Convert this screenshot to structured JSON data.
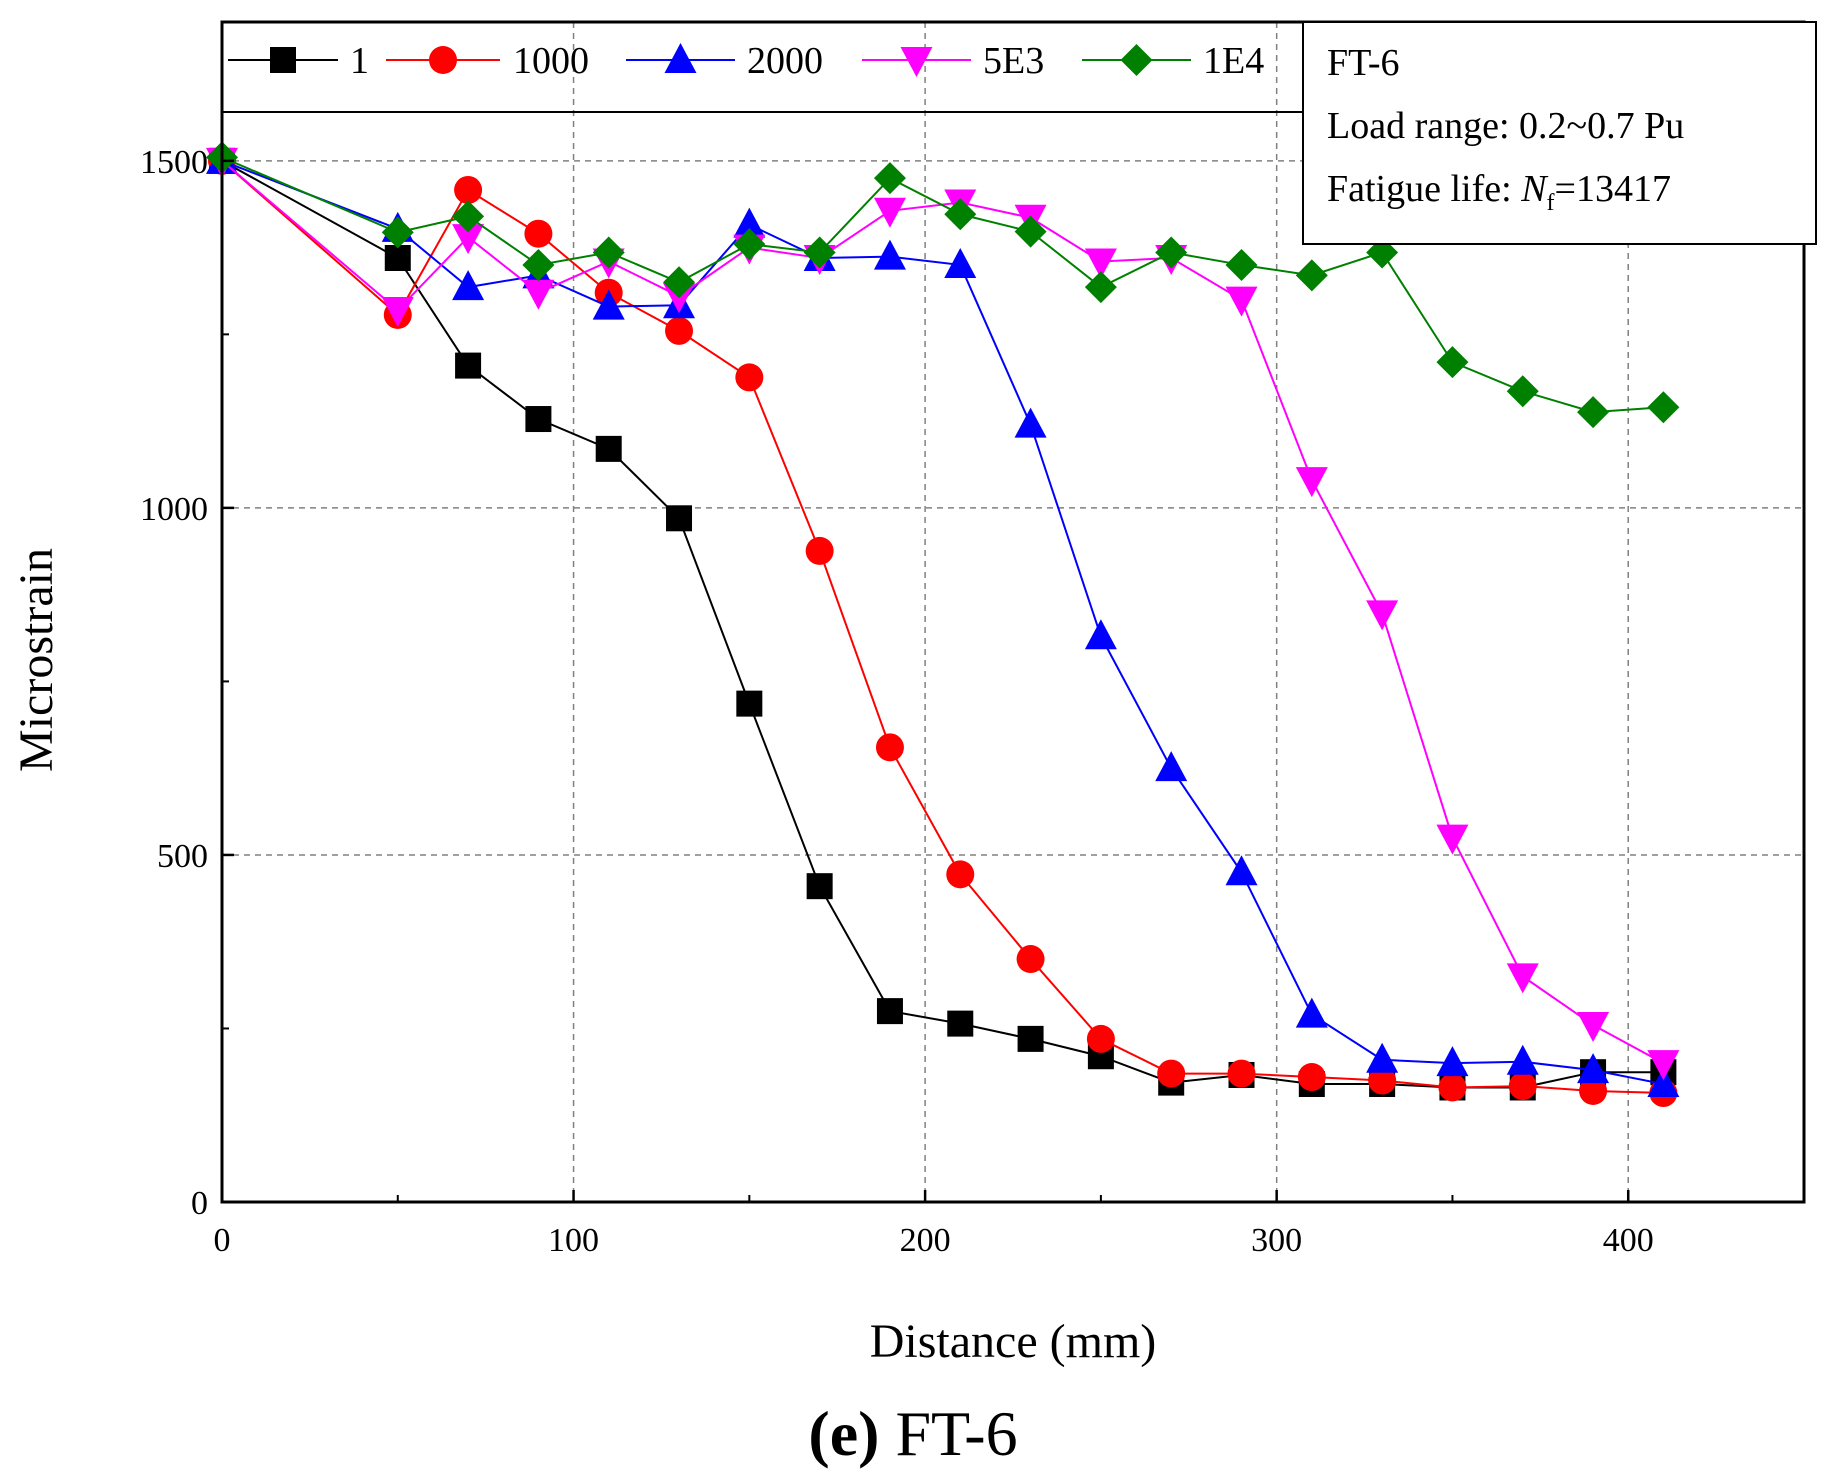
{
  "chart_data": {
    "type": "line",
    "title": "",
    "caption": {
      "prefix": "(e)",
      "text": " FT-6"
    },
    "xlabel": "Distance (mm)",
    "ylabel": "Microstrain",
    "xlim": [
      0,
      450
    ],
    "ylim": [
      0,
      1700
    ],
    "xticks": [
      0,
      100,
      200,
      300,
      400
    ],
    "yticks": [
      0,
      500,
      1000,
      1500
    ],
    "grid": true,
    "legend_position": "top",
    "info_box": {
      "position": "top-right",
      "specimen": "FT-6",
      "load_range": "Load range: 0.2~0.7 Pu",
      "fatigue_label": "Fatigue life: ",
      "nf_symbol": "N",
      "nf_subscript": "f",
      "nf_value": "=13417"
    },
    "x": [
      0,
      50,
      70,
      90,
      110,
      130,
      150,
      170,
      190,
      210,
      230,
      250,
      270,
      290,
      310,
      330,
      350,
      370,
      390,
      410
    ],
    "series": [
      {
        "name": "1",
        "color": "#000000",
        "marker": "square",
        "values": [
          1500,
          1360,
          1205,
          1128,
          1085,
          985,
          718,
          455,
          275,
          257,
          235,
          210,
          172,
          183,
          170,
          170,
          165,
          165,
          187,
          187
        ]
      },
      {
        "name": "1000",
        "color": "#ff0000",
        "marker": "circle",
        "values": [
          1500,
          1278,
          1458,
          1395,
          1310,
          1255,
          1188,
          938,
          655,
          472,
          350,
          235,
          185,
          185,
          180,
          175,
          165,
          167,
          160,
          157
        ]
      },
      {
        "name": "2000",
        "color": "#0000ff",
        "marker": "triangle-up",
        "values": [
          1500,
          1402,
          1318,
          1335,
          1290,
          1292,
          1408,
          1360,
          1362,
          1350,
          1120,
          815,
          625,
          475,
          270,
          205,
          200,
          202,
          190,
          170
        ]
      },
      {
        "name": "5E3",
        "color": "#ff00ff",
        "marker": "triangle-down",
        "values": [
          1500,
          1285,
          1390,
          1310,
          1355,
          1305,
          1375,
          1360,
          1428,
          1440,
          1418,
          1355,
          1360,
          1300,
          1040,
          848,
          525,
          325,
          255,
          200
        ]
      },
      {
        "name": "1E4",
        "color": "#008000",
        "marker": "diamond",
        "values": [
          1505,
          1397,
          1420,
          1350,
          1368,
          1325,
          1380,
          1368,
          1475,
          1423,
          1398,
          1318,
          1368,
          1350,
          1335,
          1368,
          1210,
          1168,
          1138,
          1145
        ]
      }
    ]
  }
}
